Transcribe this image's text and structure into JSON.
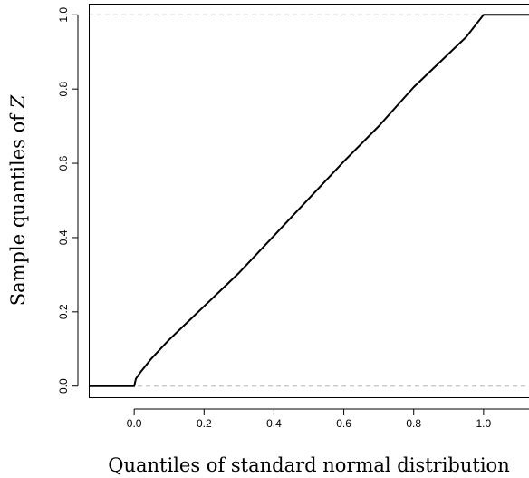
{
  "chart_data": {
    "type": "line",
    "title": "",
    "xlabel": "Quantiles of standard normal distribution",
    "ylabel": {
      "text": "Sample quantiles of",
      "variable": "Z"
    },
    "xlim": [
      -0.13,
      1.13
    ],
    "ylim": [
      -0.03,
      1.03
    ],
    "x_ticks": [
      "0.0",
      "0.2",
      "0.4",
      "0.6",
      "0.8",
      "1.0"
    ],
    "y_ticks": [
      "0.0",
      "0.2",
      "0.4",
      "0.6",
      "0.8",
      "1.0"
    ],
    "x_tick_values": [
      0,
      0.2,
      0.4,
      0.6,
      0.8,
      1.0
    ],
    "y_tick_values": [
      0,
      0.2,
      0.4,
      0.6,
      0.8,
      1.0
    ],
    "grid": false,
    "reference_lines": [
      {
        "axis": "y",
        "value": 0,
        "style": "dashed",
        "color": "#b3b3b3"
      },
      {
        "axis": "y",
        "value": 1,
        "style": "dashed",
        "color": "#b3b3b3"
      }
    ],
    "series": [
      {
        "color": "#000000",
        "x": [
          -0.13,
          0.0,
          0.005,
          0.02,
          0.05,
          0.1,
          0.15,
          0.2,
          0.3,
          0.4,
          0.5,
          0.6,
          0.7,
          0.8,
          0.9,
          0.95,
          0.975,
          1.0,
          1.13
        ],
        "y": [
          0.0,
          0.0,
          0.02,
          0.04,
          0.075,
          0.125,
          0.17,
          0.215,
          0.305,
          0.405,
          0.505,
          0.605,
          0.7,
          0.805,
          0.895,
          0.94,
          0.97,
          1.0,
          1.0
        ]
      }
    ]
  }
}
